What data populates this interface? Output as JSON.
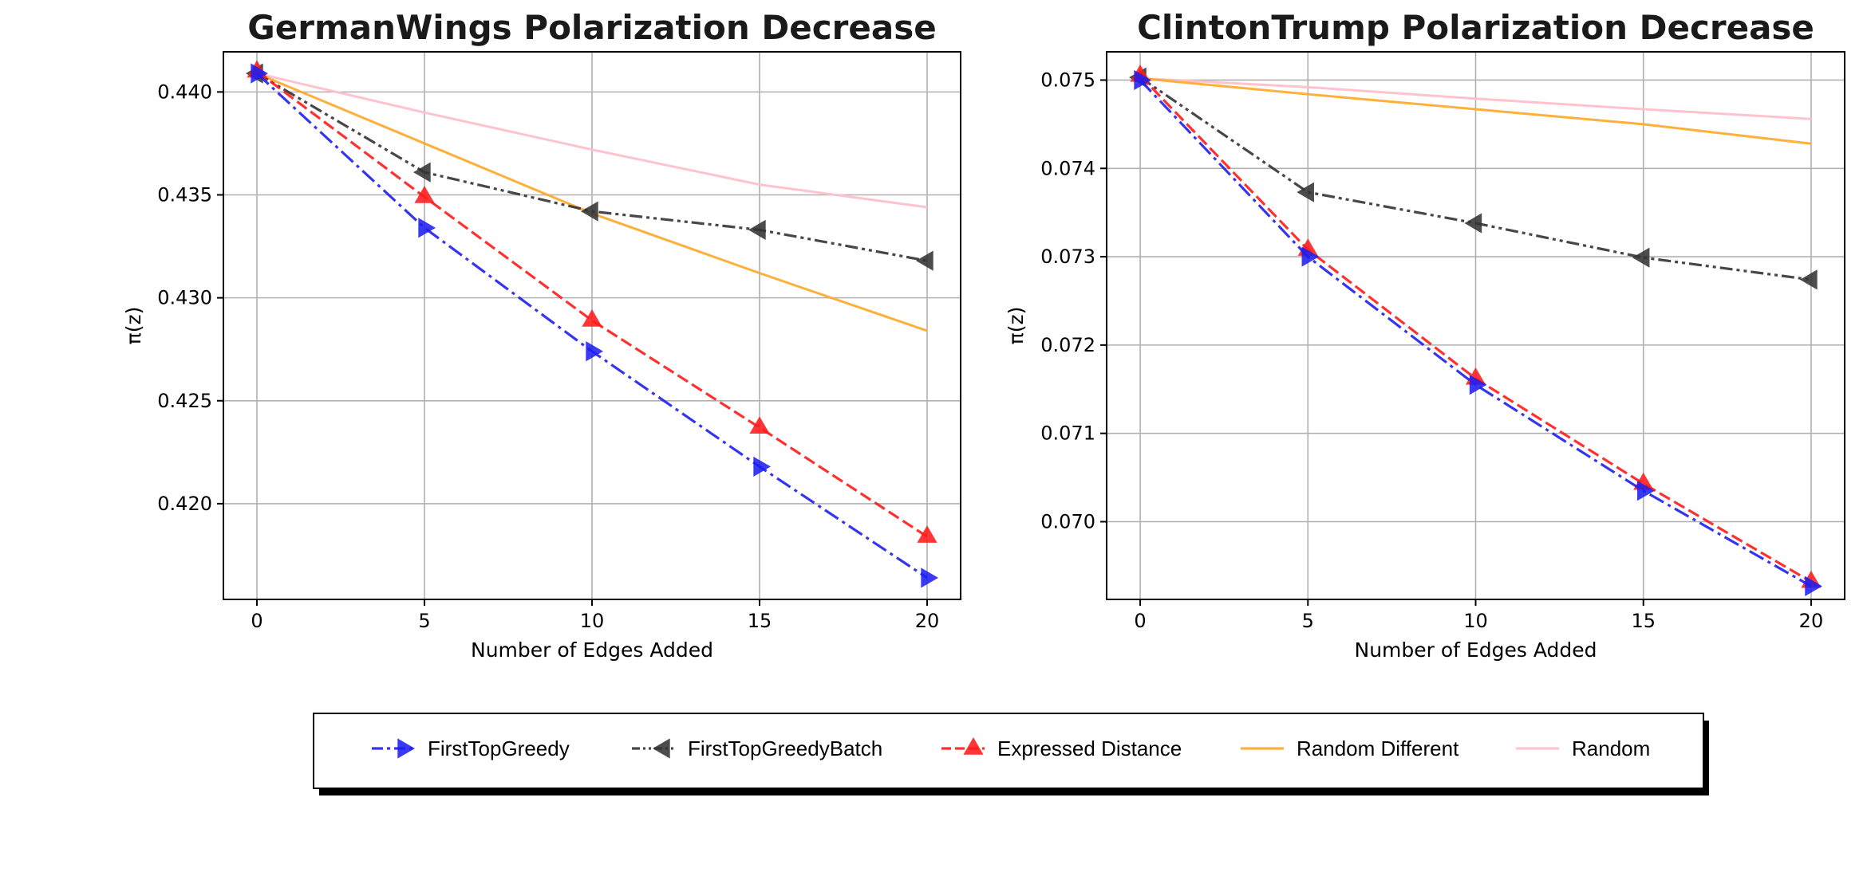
{
  "chart_data": [
    {
      "type": "line",
      "title": "GermanWings Polarization Decrease",
      "xlabel": "Number of Edges Added",
      "ylabel": "π(z)",
      "xlim": [
        -1,
        21
      ],
      "ylim": [
        0.41535,
        0.44195
      ],
      "xticks": [
        0,
        5,
        10,
        15,
        20
      ],
      "xtick_labels": [
        "0",
        "5",
        "10",
        "15",
        "20"
      ],
      "yticks": [
        0.42,
        0.425,
        0.43,
        0.435,
        0.44
      ],
      "ytick_labels": [
        "0.420",
        "0.425",
        "0.430",
        "0.435",
        "0.440"
      ],
      "grid": true,
      "x": [
        0,
        5,
        10,
        15,
        20
      ],
      "series": [
        {
          "name": "FirstTopGreedy",
          "values": [
            0.4409,
            0.4334,
            0.4274,
            0.4218,
            0.4164
          ]
        },
        {
          "name": "FirstTopGreedyBatch",
          "values": [
            0.4409,
            0.4361,
            0.4342,
            0.4333,
            0.4318
          ]
        },
        {
          "name": "Expressed Distance",
          "values": [
            0.441,
            0.4349,
            0.4289,
            0.4237,
            0.4184
          ]
        },
        {
          "name": "Random Different",
          "values": [
            0.4409,
            0.4375,
            0.4341,
            0.4312,
            0.4284
          ]
        },
        {
          "name": "Random",
          "values": [
            0.4409,
            0.439,
            0.4372,
            0.4355,
            0.4344
          ]
        }
      ]
    },
    {
      "type": "line",
      "title": "ClintonTrump Polarization Decrease",
      "xlabel": "Number of Edges Added",
      "ylabel": "π(z)",
      "xlim": [
        -1,
        21
      ],
      "ylim": [
        0.06912,
        0.07532
      ],
      "xticks": [
        0,
        5,
        10,
        15,
        20
      ],
      "xtick_labels": [
        "0",
        "5",
        "10",
        "15",
        "20"
      ],
      "yticks": [
        0.07,
        0.071,
        0.072,
        0.073,
        0.074,
        0.075
      ],
      "ytick_labels": [
        "0.070",
        "0.071",
        "0.072",
        "0.073",
        "0.074",
        "0.075"
      ],
      "grid": true,
      "x": [
        0,
        5,
        10,
        15,
        20
      ],
      "series": [
        {
          "name": "FirstTopGreedy",
          "values": [
            0.075,
            0.073,
            0.07155,
            0.07035,
            0.06927
          ]
        },
        {
          "name": "FirstTopGreedyBatch",
          "values": [
            0.07503,
            0.07373,
            0.07338,
            0.07299,
            0.07274
          ]
        },
        {
          "name": "Expressed Distance",
          "values": [
            0.07505,
            0.07308,
            0.07162,
            0.07043,
            0.06932
          ]
        },
        {
          "name": "Random Different",
          "values": [
            0.07502,
            0.07484,
            0.07467,
            0.0745,
            0.07428
          ]
        },
        {
          "name": "Random",
          "values": [
            0.07502,
            0.07492,
            0.07479,
            0.07467,
            0.07456
          ]
        }
      ]
    }
  ],
  "series_styles": [
    {
      "name": "FirstTopGreedy",
      "color": "#1f1ff0",
      "dash": "dashdot",
      "marker": "triangle-right"
    },
    {
      "name": "FirstTopGreedyBatch",
      "color": "#333333",
      "dash": "dashdotdot",
      "marker": "triangle-left"
    },
    {
      "name": "Expressed Distance",
      "color": "#ff1a1a",
      "dash": "dashed",
      "marker": "triangle-up"
    },
    {
      "name": "Random Different",
      "color": "#ffa726",
      "dash": "solid",
      "marker": "none"
    },
    {
      "name": "Random",
      "color": "#ffc0cb",
      "dash": "solid",
      "marker": "none"
    }
  ],
  "legend": {
    "position": "bottom-center",
    "entries": [
      "FirstTopGreedy",
      "FirstTopGreedyBatch",
      "Expressed Distance",
      "Random Different",
      "Random"
    ]
  }
}
